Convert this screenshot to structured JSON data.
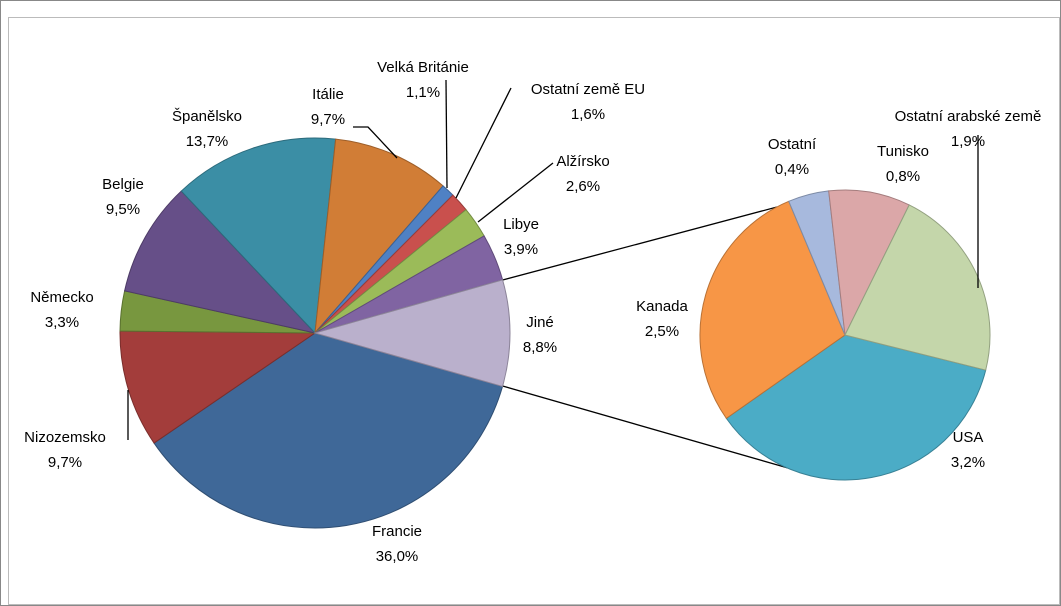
{
  "chart_data": [
    {
      "type": "pie",
      "categories": [
        "Francie",
        "Nizozemsko",
        "Německo",
        "Belgie",
        "Španělsko",
        "Itálie",
        "Velká Británie",
        "Ostatní země EU",
        "Alžírsko",
        "Libye",
        "Jiné"
      ],
      "values": [
        36.0,
        9.7,
        3.3,
        9.5,
        13.7,
        9.7,
        1.1,
        1.6,
        2.6,
        3.9,
        8.8
      ],
      "value_labels": [
        "36,0%",
        "9,7%",
        "3,3%",
        "9,5%",
        "13,7%",
        "9,7%",
        "1,1%",
        "1,6%",
        "2,6%",
        "3,9%",
        "8,8%"
      ],
      "colors": [
        "#3f6898",
        "#a33d3b",
        "#78973f",
        "#664f88",
        "#3b8ea5",
        "#d17d36",
        "#4f81c4",
        "#c9504d",
        "#9bbb59",
        "#8064a2",
        "#bab0cc"
      ]
    },
    {
      "type": "pie",
      "categories": [
        "USA",
        "Kanada",
        "Ostatní",
        "Tunisko",
        "Ostatní arabské země"
      ],
      "values": [
        3.2,
        2.5,
        0.4,
        0.8,
        1.9
      ],
      "value_labels": [
        "3,2%",
        "2,5%",
        "0,4%",
        "0,8%",
        "1,9%"
      ],
      "colors": [
        "#4bacc6",
        "#f79646",
        "#a7b9dd",
        "#dba7a8",
        "#c4d6aa"
      ]
    }
  ]
}
